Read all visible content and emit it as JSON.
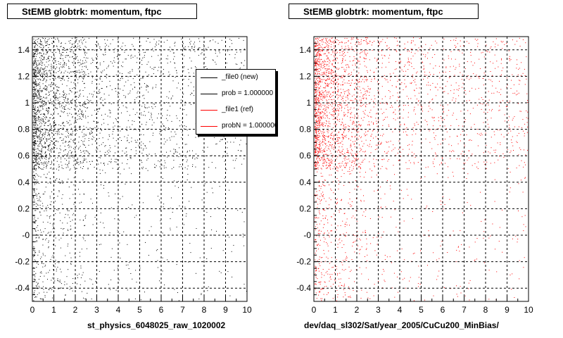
{
  "chart_data": [
    {
      "type": "scatter",
      "title": "StEMB globtrk: momentum, ftpc",
      "xlabel": "st_physics_6048025_raw_1020002",
      "ylabel": "",
      "xlim": [
        0,
        10
      ],
      "ylim": [
        -0.5,
        1.5
      ],
      "x_ticks": [
        "0",
        "1",
        "2",
        "3",
        "4",
        "5",
        "6",
        "7",
        "8",
        "9",
        "10"
      ],
      "y_ticks": [
        "-0.4",
        "-0.2",
        "-0",
        "0.2",
        "0.4",
        "0.6",
        "0.8",
        "1",
        "1.2",
        "1.4"
      ],
      "grid": true,
      "point_color": "#000000",
      "legend": {
        "placement": "top-right",
        "entries": [
          {
            "label": "_file0 (new)",
            "color": "#000000"
          },
          {
            "label": "prob = 1.000000",
            "color": "#000000"
          },
          {
            "label": "_file1 (ref)",
            "color": "#ff0000"
          },
          {
            "label": "probN = 1.000000",
            "color": "#ff0000"
          }
        ]
      }
    },
    {
      "type": "scatter",
      "title": "StEMB globtrk: momentum, ftpc",
      "xlabel": "dev/daq_sl302/Sat/year_2005/CuCu200_MinBias/",
      "ylabel": "",
      "xlim": [
        0,
        10
      ],
      "ylim": [
        -0.5,
        1.5
      ],
      "x_ticks": [
        "0",
        "1",
        "2",
        "3",
        "4",
        "5",
        "6",
        "7",
        "8",
        "9",
        "10"
      ],
      "y_ticks": [
        "-0.4",
        "-0.2",
        "-0",
        "0.2",
        "0.4",
        "0.6",
        "0.8",
        "1",
        "1.2",
        "1.4"
      ],
      "grid": true,
      "point_color": "#ff0000"
    }
  ]
}
